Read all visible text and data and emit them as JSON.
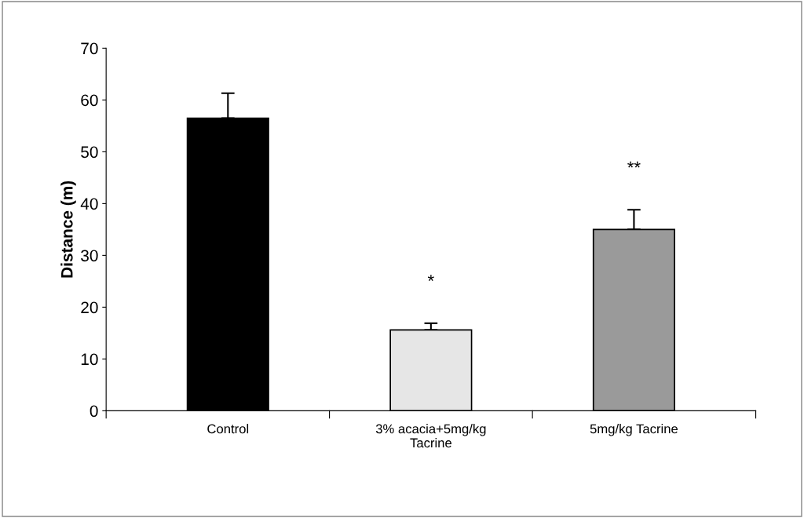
{
  "chart_data": {
    "type": "bar",
    "ylabel": "Distance (m)",
    "categories": [
      "Control",
      "3% acacia+5mg/kg\nTacrine",
      "5mg/kg Tacrine"
    ],
    "values": [
      56.5,
      15.6,
      35.0
    ],
    "colors": [
      "#000000",
      "#e6e6e6",
      "#9a9a9a"
    ],
    "errors": [
      [
        56.5,
        61.3
      ],
      [
        15.6,
        16.9
      ],
      [
        35.0,
        38.8
      ]
    ],
    "ylim": [
      0,
      70
    ],
    "yticks": [
      0,
      10,
      20,
      30,
      40,
      50,
      60,
      70
    ],
    "grid": false,
    "legend": false,
    "annotations": [
      "*",
      "**"
    ]
  }
}
